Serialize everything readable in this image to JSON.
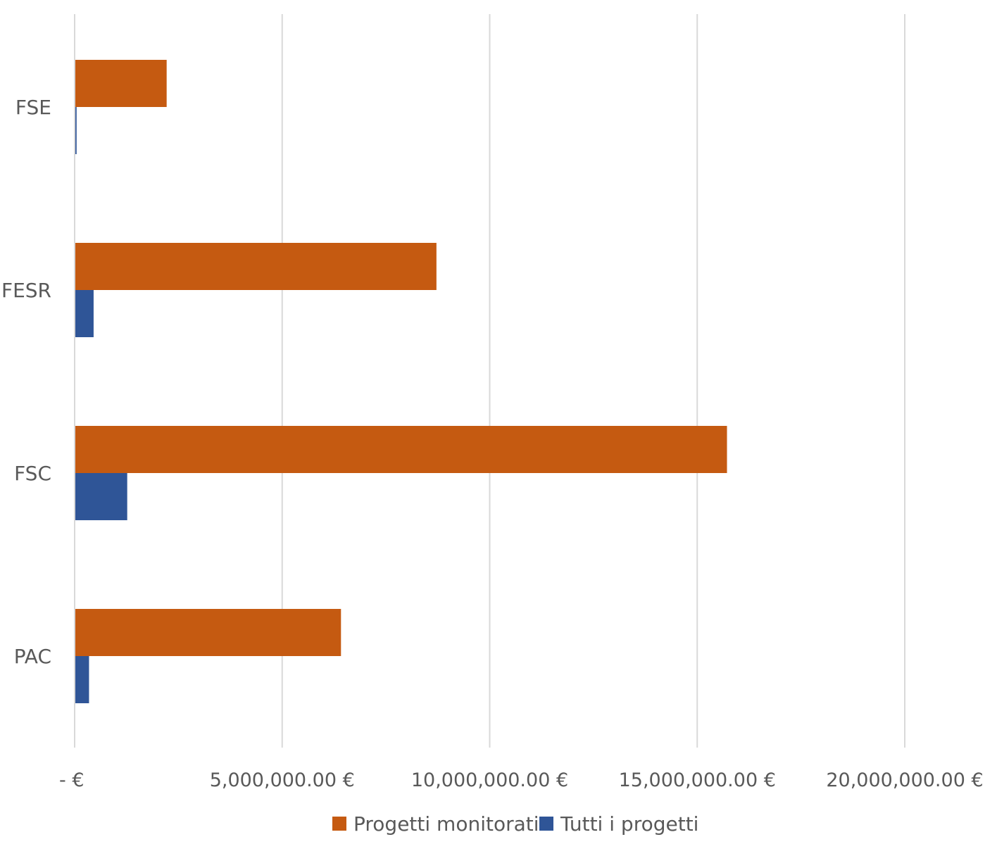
{
  "chart_data": {
    "type": "bar",
    "orientation": "horizontal",
    "categories": [
      "FSE",
      "FESR",
      "FSC",
      "PAC"
    ],
    "series": [
      {
        "name": "Progetti monitorati",
        "color": "#C55A11",
        "values": [
          2200000,
          8700000,
          15700000,
          6400000
        ]
      },
      {
        "name": "Tutti i progetti",
        "color": "#2F5597",
        "values": [
          30000,
          440000,
          1250000,
          330000
        ]
      }
    ],
    "x_ticks": [
      {
        "value": 0,
        "label": "-   €"
      },
      {
        "value": 5000000,
        "label": "5,000,000.00 €"
      },
      {
        "value": 10000000,
        "label": "10,000,000.00 €"
      },
      {
        "value": 15000000,
        "label": "15,000,000.00 €"
      },
      {
        "value": 20000000,
        "label": "20,000,000.00 €"
      }
    ],
    "xlim": [
      0,
      20000000
    ],
    "grid": true,
    "legend_position": "bottom",
    "title": "",
    "xlabel": "",
    "ylabel": ""
  }
}
